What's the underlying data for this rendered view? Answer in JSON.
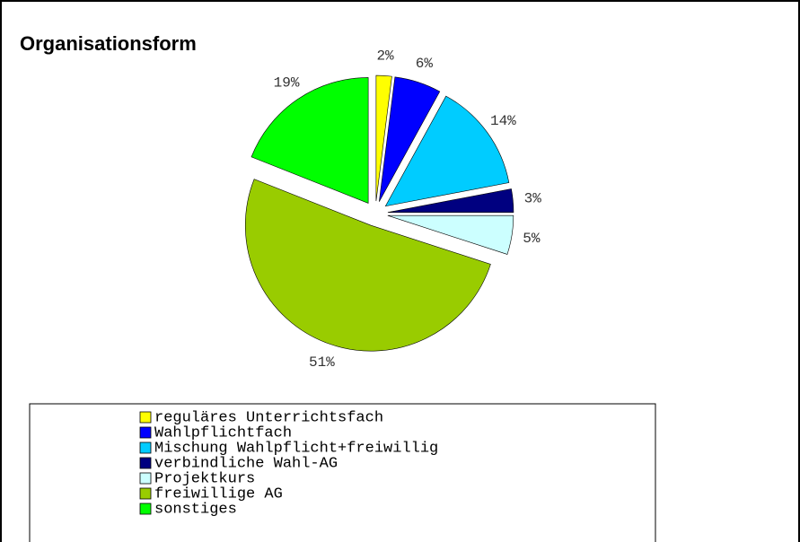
{
  "chart_data": {
    "type": "pie",
    "title": "Organisationsform",
    "categories": [
      "reguläres Unterrichtsfach",
      "Wahlpflichtfach",
      "Mischung Wahlpflicht+freiwillig",
      "verbindliche Wahl-AG",
      "Projektkurs",
      "freiwillige AG",
      "sonstiges"
    ],
    "values": [
      2,
      6,
      14,
      3,
      5,
      51,
      19
    ],
    "value_labels": [
      "2%",
      "6%",
      "14%",
      "3%",
      "5%",
      "51%",
      "19%"
    ],
    "colors": [
      "#ffff00",
      "#0000ff",
      "#00ccff",
      "#000080",
      "#ccffff",
      "#99cc00",
      "#00ff00"
    ],
    "legend": "bottom"
  }
}
